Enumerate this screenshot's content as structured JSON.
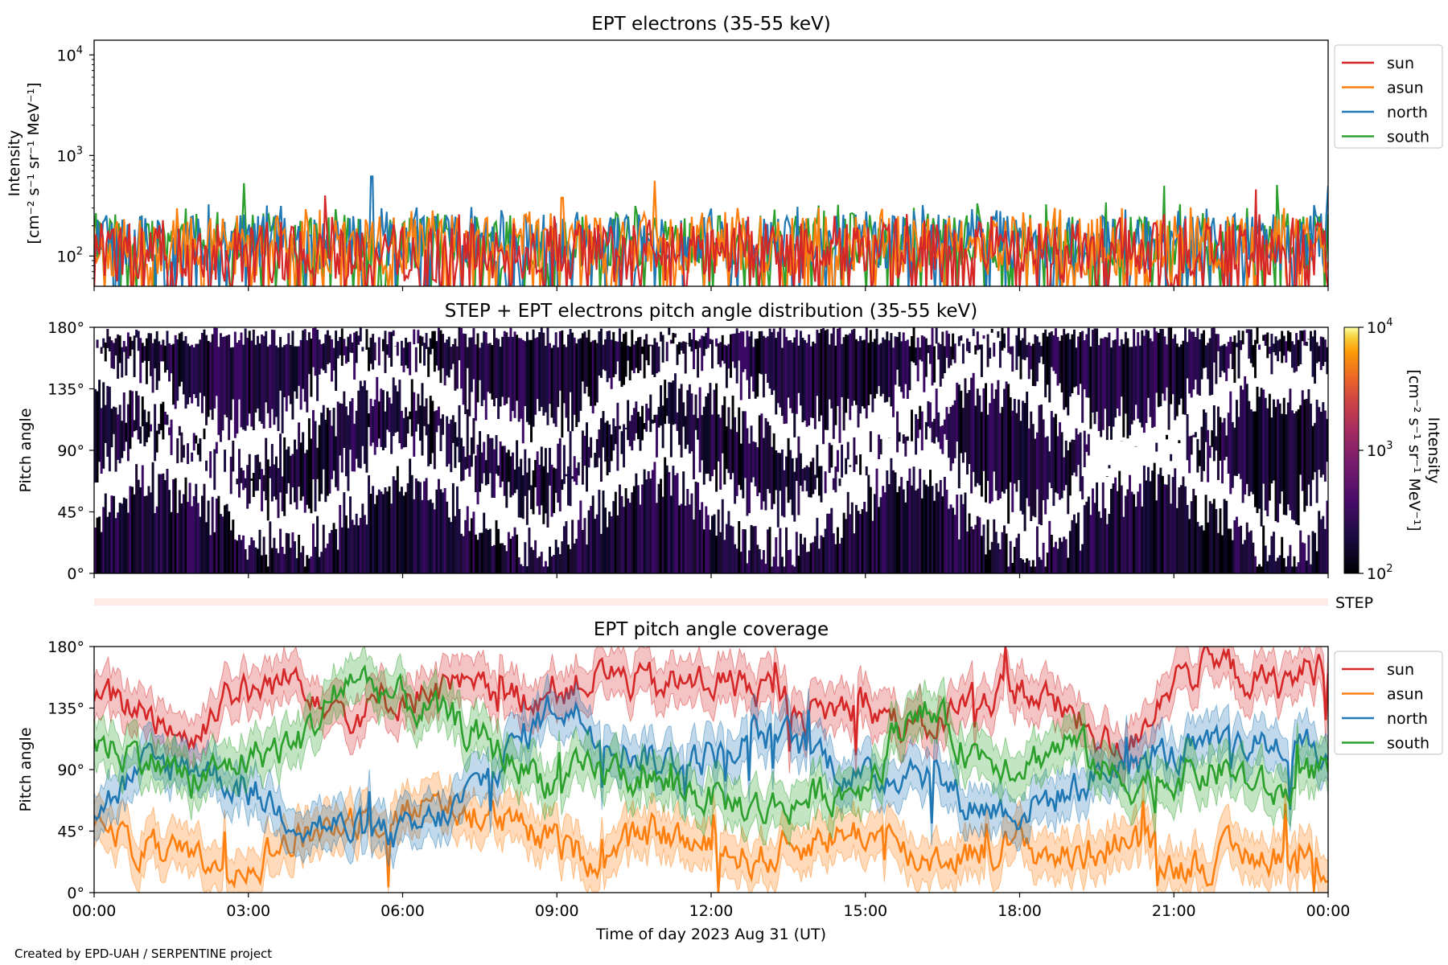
{
  "figure": {
    "credit": "Created by EPD-UAH / SERPENTINE project"
  },
  "chart_data": [
    {
      "type": "line",
      "title": "EPT electrons (35-55 keV)",
      "ylabel_line1": "Intensity",
      "ylabel_line2": "[cm⁻² s⁻¹ sr⁻¹ MeV⁻¹]",
      "yscale": "log",
      "ylim": [
        50,
        14000
      ],
      "yticks": [
        {
          "value": 100,
          "base": "10",
          "exp": "2"
        },
        {
          "value": 1000,
          "base": "10",
          "exp": "3"
        },
        {
          "value": 10000,
          "base": "10",
          "exp": "4"
        }
      ],
      "xlim": [
        0,
        24
      ],
      "legend_position": "outside-top-right",
      "series": [
        {
          "name": "south",
          "color": "#2ca02c",
          "base": 150,
          "spread": 0.28,
          "peaks": [
            [
              2.9,
              530
            ],
            [
              20.8,
              500
            ],
            [
              23.0,
              510
            ]
          ]
        },
        {
          "name": "north",
          "color": "#1f77b4",
          "base": 145,
          "spread": 0.28,
          "peaks": [
            [
              5.4,
              620
            ],
            [
              24.0,
              500
            ]
          ]
        },
        {
          "name": "asun",
          "color": "#ff7f0e",
          "base": 135,
          "spread": 0.3,
          "peaks": [
            [
              10.9,
              560
            ],
            [
              9.1,
              380
            ]
          ]
        },
        {
          "name": "sun",
          "color": "#d62728",
          "base": 115,
          "spread": 0.3,
          "peaks": [
            [
              4.5,
              400
            ],
            [
              22.6,
              460
            ]
          ]
        }
      ],
      "legend_order": [
        "sun",
        "asun",
        "north",
        "south"
      ]
    },
    {
      "type": "heatmap",
      "title": "STEP + EPT electrons pitch angle distribution (35-55 keV)",
      "ylabel": "Pitch angle",
      "ylim": [
        0,
        180
      ],
      "yticks": [
        {
          "value": 0,
          "label": "0°"
        },
        {
          "value": 45,
          "label": "45°"
        },
        {
          "value": 90,
          "label": "90°"
        },
        {
          "value": 135,
          "label": "135°"
        },
        {
          "value": 180,
          "label": "180°"
        }
      ],
      "xlim": [
        0,
        24
      ],
      "colorbar": {
        "label_line1": "Intensity",
        "label_line2": "[cm⁻² s⁻¹ sr⁻¹ MeV⁻¹]",
        "scale": "log",
        "range": [
          100,
          10000
        ],
        "ticks": [
          {
            "value": 100,
            "base": "10",
            "exp": "2"
          },
          {
            "value": 1000,
            "base": "10",
            "exp": "3"
          },
          {
            "value": 10000,
            "base": "10",
            "exp": "4"
          }
        ],
        "colormap": "inferno"
      }
    },
    {
      "type": "bar",
      "label": "STEP"
    },
    {
      "type": "line",
      "title": "EPT pitch angle coverage",
      "ylabel": "Pitch angle",
      "xlabel": "Time of day 2023 Aug 31 (UT)",
      "ylim": [
        0,
        180
      ],
      "yticks": [
        {
          "value": 0,
          "label": "0°"
        },
        {
          "value": 45,
          "label": "45°"
        },
        {
          "value": 90,
          "label": "90°"
        },
        {
          "value": 135,
          "label": "135°"
        },
        {
          "value": 180,
          "label": "180°"
        }
      ],
      "xlim": [
        0,
        24
      ],
      "xticks": [
        {
          "value": 0,
          "label": "00:00"
        },
        {
          "value": 3,
          "label": "03:00"
        },
        {
          "value": 6,
          "label": "06:00"
        },
        {
          "value": 9,
          "label": "09:00"
        },
        {
          "value": 12,
          "label": "12:00"
        },
        {
          "value": 15,
          "label": "15:00"
        },
        {
          "value": 18,
          "label": "18:00"
        },
        {
          "value": 21,
          "label": "21:00"
        },
        {
          "value": 24,
          "label": "00:00"
        }
      ],
      "band_halfwidth_deg": 16,
      "legend_position": "outside-top-right",
      "series": [
        {
          "name": "sun",
          "color": "#d62728",
          "keypoints": [
            [
              0,
              140
            ],
            [
              1,
              135
            ],
            [
              2,
              110
            ],
            [
              2.5,
              150
            ],
            [
              3,
              145
            ],
            [
              4,
              160
            ],
            [
              5,
              130
            ],
            [
              6,
              145
            ],
            [
              7,
              150
            ],
            [
              8,
              140
            ],
            [
              9,
              150
            ],
            [
              10,
              160
            ],
            [
              11,
              150
            ],
            [
              12,
              155
            ],
            [
              13,
              150
            ],
            [
              14,
              130
            ],
            [
              15,
              140
            ],
            [
              16,
              115
            ],
            [
              17,
              140
            ],
            [
              18,
              150
            ],
            [
              19,
              130
            ],
            [
              20,
              100
            ],
            [
              21,
              160
            ],
            [
              22,
              165
            ],
            [
              23,
              150
            ],
            [
              24,
              170
            ]
          ]
        },
        {
          "name": "asun",
          "color": "#ff7f0e",
          "keypoints": [
            [
              0,
              50
            ],
            [
              1,
              30
            ],
            [
              2,
              20
            ],
            [
              3,
              25
            ],
            [
              4,
              40
            ],
            [
              5,
              55
            ],
            [
              6,
              60
            ],
            [
              7,
              65
            ],
            [
              8,
              50
            ],
            [
              9,
              35
            ],
            [
              10,
              25
            ],
            [
              11,
              45
            ],
            [
              12,
              30
            ],
            [
              13,
              25
            ],
            [
              14,
              40
            ],
            [
              15,
              45
            ],
            [
              16,
              25
            ],
            [
              17,
              30
            ],
            [
              18,
              35
            ],
            [
              19,
              25
            ],
            [
              20,
              40
            ],
            [
              21,
              20
            ],
            [
              22,
              25
            ],
            [
              23,
              30
            ],
            [
              24,
              20
            ]
          ]
        },
        {
          "name": "north",
          "color": "#1f77b4",
          "keypoints": [
            [
              0,
              60
            ],
            [
              1,
              90
            ],
            [
              2,
              95
            ],
            [
              3,
              75
            ],
            [
              4,
              55
            ],
            [
              5,
              45
            ],
            [
              6,
              40
            ],
            [
              7,
              60
            ],
            [
              8,
              100
            ],
            [
              9,
              140
            ],
            [
              10,
              115
            ],
            [
              11,
              95
            ],
            [
              12,
              100
            ],
            [
              13,
              115
            ],
            [
              14,
              105
            ],
            [
              15,
              80
            ],
            [
              16,
              95
            ],
            [
              17,
              65
            ],
            [
              18,
              60
            ],
            [
              19,
              75
            ],
            [
              20,
              95
            ],
            [
              21,
              100
            ],
            [
              22,
              105
            ],
            [
              23,
              110
            ],
            [
              24,
              100
            ]
          ]
        },
        {
          "name": "south",
          "color": "#2ca02c",
          "keypoints": [
            [
              0,
              110
            ],
            [
              1,
              100
            ],
            [
              2,
              80
            ],
            [
              3,
              100
            ],
            [
              4,
              110
            ],
            [
              5,
              160
            ],
            [
              6,
              140
            ],
            [
              7,
              125
            ],
            [
              8,
              100
            ],
            [
              9,
              80
            ],
            [
              10,
              90
            ],
            [
              11,
              80
            ],
            [
              12,
              70
            ],
            [
              13,
              60
            ],
            [
              14,
              70
            ],
            [
              15,
              80
            ],
            [
              16,
              140
            ],
            [
              17,
              105
            ],
            [
              18,
              95
            ],
            [
              19,
              110
            ],
            [
              20,
              80
            ],
            [
              21,
              85
            ],
            [
              22,
              90
            ],
            [
              23,
              70
            ],
            [
              24,
              95
            ]
          ]
        }
      ],
      "legend_order": [
        "sun",
        "asun",
        "north",
        "south"
      ]
    }
  ]
}
